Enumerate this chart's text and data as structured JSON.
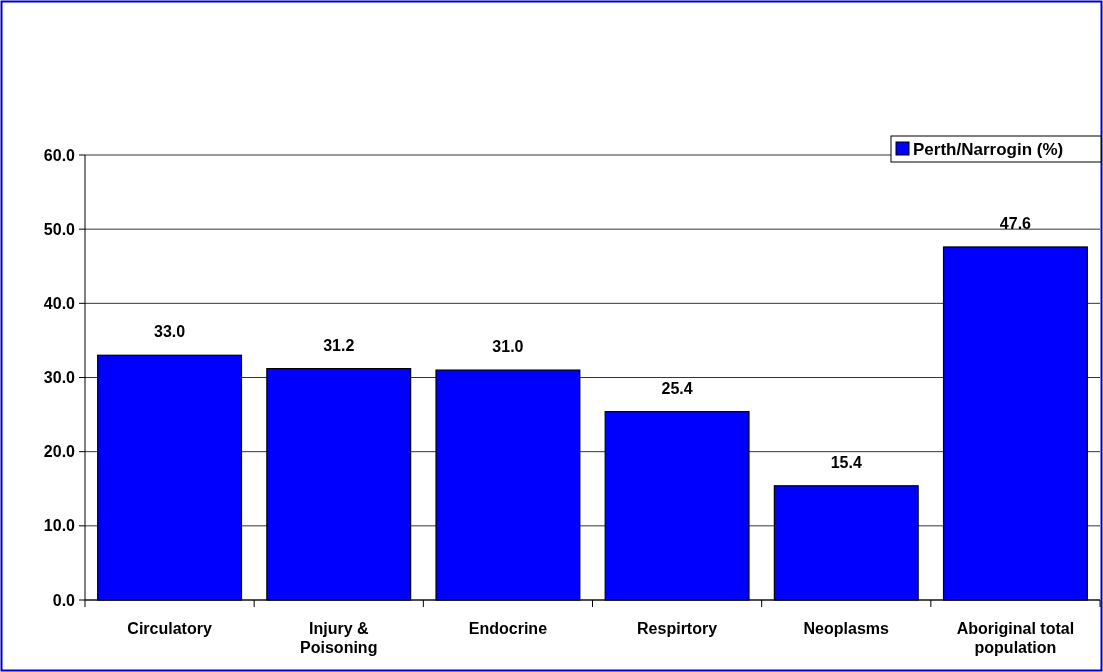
{
  "chart_data": {
    "type": "bar",
    "categories": [
      "Circulatory",
      "Injury & Poisoning",
      "Endocrine",
      "Respirtory",
      "Neoplasms",
      "Aboriginal total population"
    ],
    "series": [
      {
        "name": "Perth/Narrogin (%)",
        "color": "#0000ff",
        "values": [
          33.0,
          31.2,
          31.0,
          25.4,
          15.4,
          47.6
        ],
        "value_labels": [
          "33.0",
          "31.2",
          "31.0",
          "25.4",
          "15.4",
          "47.6"
        ]
      }
    ],
    "ylim": [
      0,
      60
    ],
    "yticks": [
      {
        "value": 0,
        "label": "0.0"
      },
      {
        "value": 10,
        "label": "10.0"
      },
      {
        "value": 20,
        "label": "20.0"
      },
      {
        "value": 30,
        "label": "30.0"
      },
      {
        "value": 40,
        "label": "40.0"
      },
      {
        "value": 50,
        "label": "50.0"
      },
      {
        "value": 60,
        "label": "60.0"
      }
    ],
    "grid": "y",
    "legend": "top right"
  }
}
